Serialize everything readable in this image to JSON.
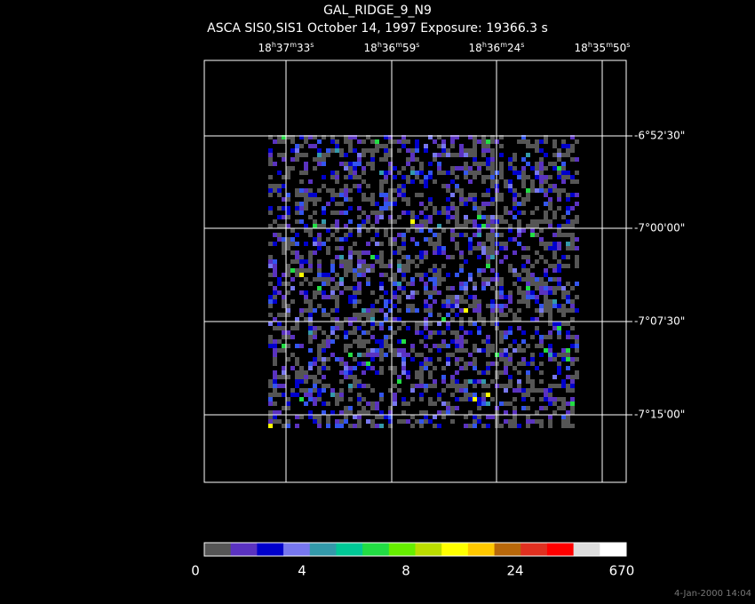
{
  "title": "GAL_RIDGE_9_N9",
  "subtitle": "ASCA SIS0,SIS1 October 14, 1997 Exposure: 19366.3 s",
  "ra_labels": [
    [
      "18",
      "h",
      "37",
      "m",
      "33",
      "s"
    ],
    [
      "18",
      "h",
      "36",
      "m",
      "59",
      "s"
    ],
    [
      "18",
      "h",
      "36",
      "m",
      "24",
      "s"
    ],
    [
      "18",
      "h",
      "35",
      "m",
      "50",
      "s"
    ]
  ],
  "dec_labels": [
    "-6°52'30\"",
    "-7°00'00\"",
    "-7°07'30\"",
    "-7°15'00\""
  ],
  "colorbar": {
    "colors": [
      "#555555",
      "#5a32c0",
      "#0000cc",
      "#7777ee",
      "#3399aa",
      "#00c896",
      "#22dd44",
      "#66ee00",
      "#bbdd00",
      "#ffff00",
      "#ffc800",
      "#b8680a",
      "#e03020",
      "#ff0000",
      "#dddddd",
      "#ffffff"
    ],
    "labels": [
      "0",
      "4",
      "8",
      "24",
      "670"
    ]
  },
  "timestamp": "4-Jan-2000 14:04"
}
